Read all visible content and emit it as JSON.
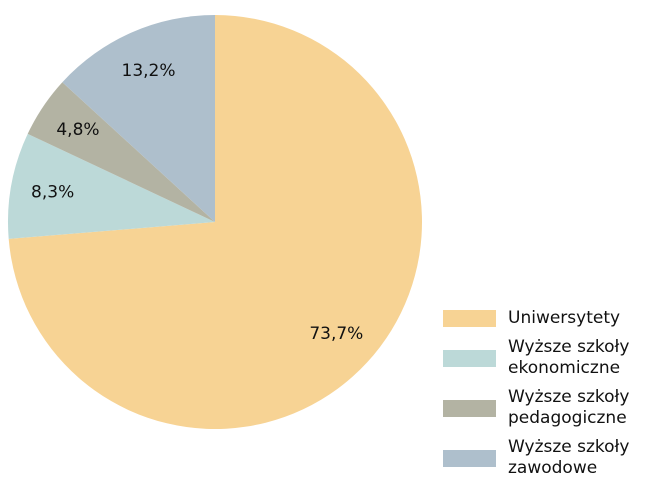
{
  "chart_data": {
    "type": "pie",
    "categories": [
      "Uniwersytety",
      "Wyższe szkoły ekonomiczne",
      "Wyższe szkoły pedagogiczne",
      "Wyższe szkoły zawodowe"
    ],
    "values": [
      73.7,
      8.3,
      4.8,
      13.2
    ],
    "value_labels": [
      "73,7%",
      "8,3%",
      "4,8%",
      "13,2%"
    ],
    "colors": [
      "#f7d394",
      "#bcd9d8",
      "#b3b3a3",
      "#aebfcc"
    ],
    "legend": "bottom-right"
  }
}
